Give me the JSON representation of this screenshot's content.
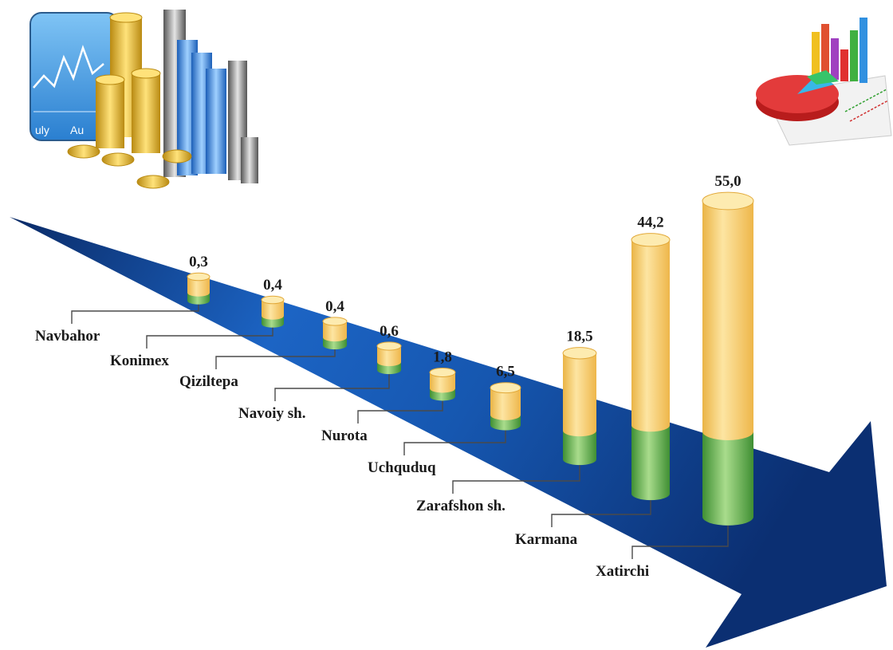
{
  "chart_data": {
    "type": "bar",
    "title": "",
    "xlabel": "",
    "ylabel": "",
    "categories": [
      "Navbahor",
      "Konimex",
      "Qiziltepa",
      "Navoiy sh.",
      "Nurota",
      "Uchquduq",
      "Zarafshon sh.",
      "Karmana",
      "Xatirchi"
    ],
    "values": [
      0.3,
      0.4,
      0.4,
      0.6,
      1.8,
      6.5,
      18.5,
      44.2,
      55.0
    ],
    "value_labels": [
      "0,3",
      "0,4",
      "0,4",
      "0,6",
      "1,8",
      "6,5",
      "18,5",
      "44,2",
      "55,0"
    ],
    "grid": false,
    "legend": "none",
    "colors": {
      "bar_top": "#f5c860",
      "bar_top_light": "#fdebb0",
      "bar_bottom": "#4c9e3e",
      "bar_bottom_light": "#a9dc8c",
      "arrow_dark": "#0a2a66",
      "arrow_light": "#1c64c4"
    }
  },
  "decorations": {
    "top_left_icon": "finance-chart-coins-icon",
    "top_right_icon": "pie-bar-chart-icon",
    "arrow": "growth-arrow-icon"
  },
  "icon_text": {
    "month_label_1": "uly",
    "month_label_2": "Au"
  }
}
